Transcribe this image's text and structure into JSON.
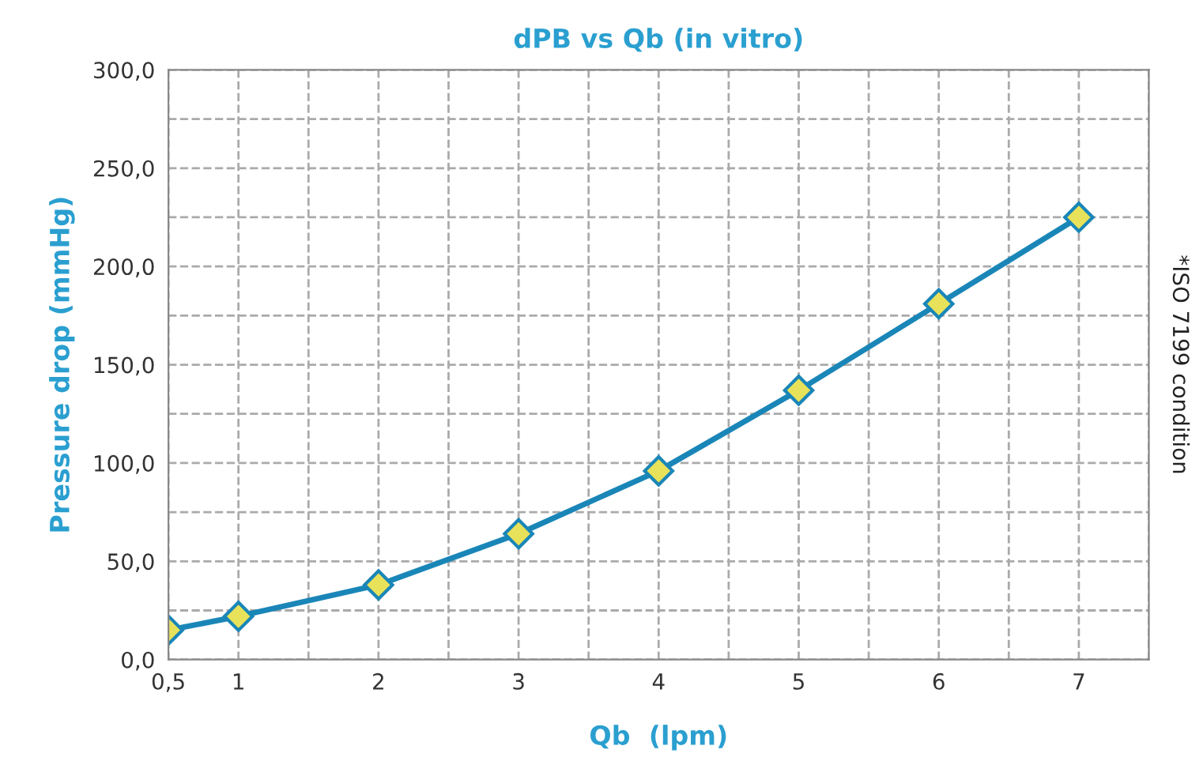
{
  "chart_data": {
    "type": "line",
    "title": "dPB vs Qb (in vitro)",
    "xlabel": "Qb  (lpm)",
    "ylabel": "Pressure drop (mmHg)",
    "annotations": [
      "*ISO 7199 condition"
    ],
    "x": [
      0.5,
      1,
      2,
      3,
      4,
      5,
      6,
      7
    ],
    "series": [
      {
        "color": "#1a86b8",
        "values": [
          15,
          22,
          38,
          64,
          96,
          137,
          181,
          225
        ]
      }
    ],
    "marker": "diamond",
    "line_style": "solid",
    "grid": true,
    "xlim": [
      0.5,
      7.5
    ],
    "xticks": [
      {
        "value": 0.5,
        "label": "0,5"
      },
      1,
      {
        "value": 1.5,
        "label": null
      },
      2,
      {
        "value": 2.5,
        "label": null
      },
      3,
      {
        "value": 3.5,
        "label": null
      },
      4,
      {
        "value": 4.5,
        "label": null
      },
      5,
      {
        "value": 5.5,
        "label": null
      },
      6,
      {
        "value": 6.5,
        "label": null
      },
      7,
      {
        "value": 7.5,
        "label": null
      }
    ],
    "ylim": [
      0,
      300
    ],
    "yticks": [
      {
        "value": 0,
        "label": "0,0"
      },
      {
        "value": 25,
        "label": null
      },
      {
        "value": 50,
        "label": "50,0"
      },
      {
        "value": 75,
        "label": null
      },
      {
        "value": 100,
        "label": "100,0"
      },
      {
        "value": 125,
        "label": null
      },
      {
        "value": 150,
        "label": "150,0"
      },
      {
        "value": 175,
        "label": null
      },
      {
        "value": 200,
        "label": "200,0"
      },
      {
        "value": 225,
        "label": null
      },
      {
        "value": 250,
        "label": "250,0"
      },
      {
        "value": 275,
        "label": null
      },
      {
        "value": 300,
        "label": "300,0"
      }
    ]
  }
}
